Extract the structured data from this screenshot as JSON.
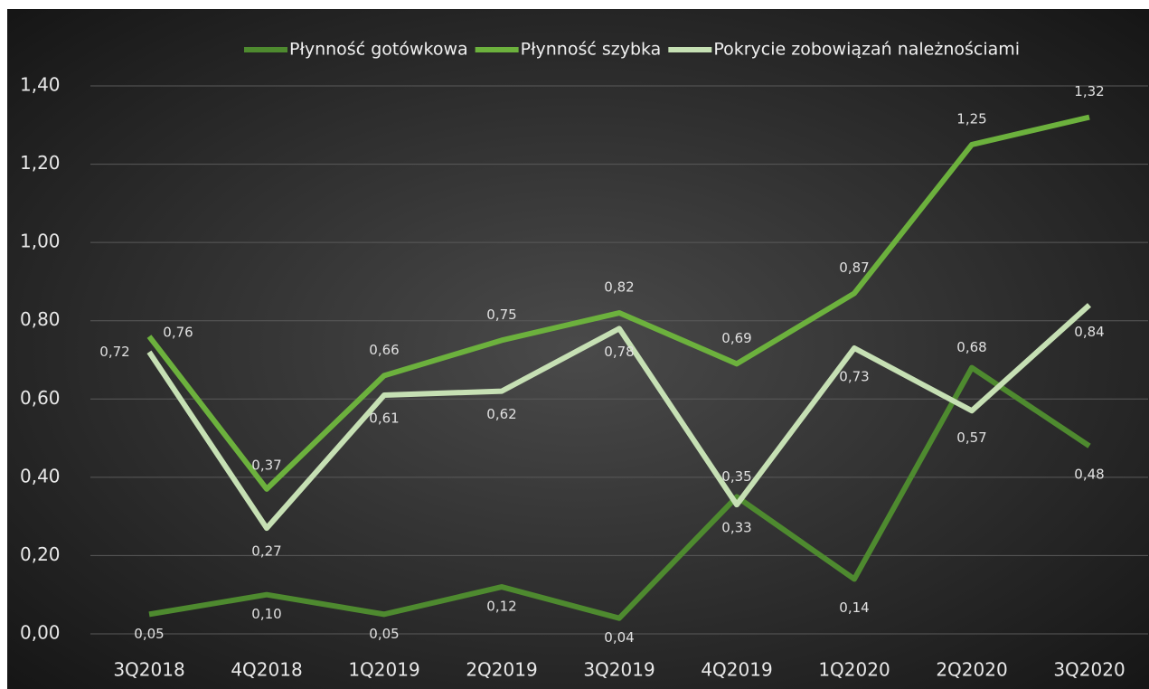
{
  "chart_data": {
    "type": "line",
    "categories": [
      "3Q2018",
      "4Q2018",
      "1Q2019",
      "2Q2019",
      "3Q2019",
      "4Q2019",
      "1Q2020",
      "2Q2020",
      "3Q2020"
    ],
    "series": [
      {
        "name": "Płynność gotówkowa",
        "color": "#4e8a2f",
        "values": [
          0.05,
          0.1,
          0.05,
          0.12,
          0.04,
          0.35,
          0.14,
          0.68,
          0.48
        ],
        "value_labels": [
          "0,05",
          "0,10",
          "0,05",
          "0,12",
          "0,04",
          "0,35",
          "0,14",
          "0,68",
          "0,48"
        ]
      },
      {
        "name": "Płynność szybka",
        "color": "#6cb13d",
        "values": [
          0.76,
          0.37,
          0.66,
          0.75,
          0.82,
          0.69,
          0.87,
          1.25,
          1.32
        ],
        "value_labels": [
          "0,76",
          "0,37",
          "0,66",
          "0,75",
          "0,82",
          "0,69",
          "0,87",
          "1,25",
          "1,32"
        ]
      },
      {
        "name": "Pokrycie zobowiązań należnościami",
        "color": "#c6e0b4",
        "values": [
          0.72,
          0.27,
          0.61,
          0.62,
          0.78,
          0.33,
          0.73,
          0.57,
          0.84
        ],
        "value_labels": [
          "0,72",
          "0,27",
          "0,61",
          "0,62",
          "0,78",
          "0,33",
          "0,73",
          "0,57",
          "0,84"
        ]
      }
    ],
    "ylim": [
      0,
      1.4
    ],
    "yticks": [
      {
        "value": 0,
        "label": "0,00"
      },
      {
        "value": 0.2,
        "label": "0,20"
      },
      {
        "value": 0.4,
        "label": "0,40"
      },
      {
        "value": 0.6,
        "label": "0,60"
      },
      {
        "value": 0.8,
        "label": "0,80"
      },
      {
        "value": 1.0,
        "label": "1,00"
      },
      {
        "value": 1.2,
        "label": "1,20"
      },
      {
        "value": 1.4,
        "label": "1,40"
      }
    ],
    "grid": true,
    "legend": "top"
  }
}
